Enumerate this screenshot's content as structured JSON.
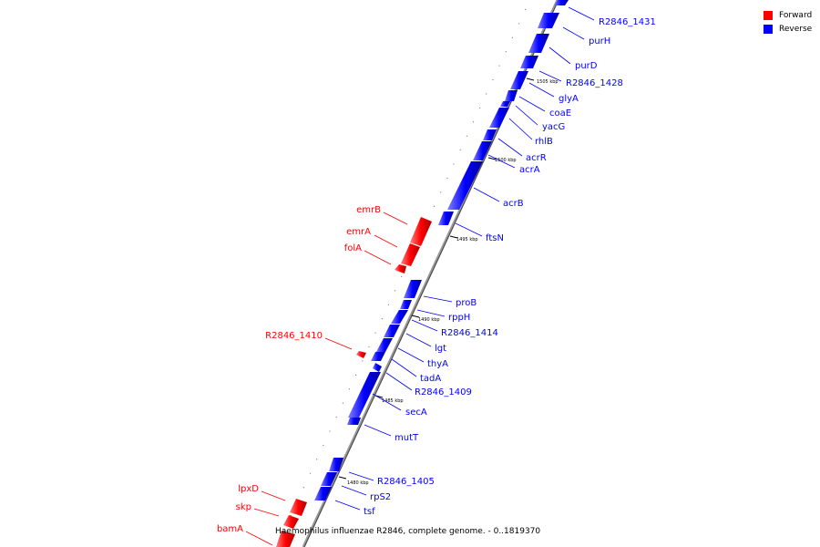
{
  "legend": {
    "forward_label": "Forward",
    "reverse_label": "Reverse",
    "forward_color": "#ff0000",
    "reverse_color": "#0000ff"
  },
  "caption": "Haemophilus influenzae R2846, complete genome. - 0..1819370",
  "ticks": [
    "1505 kbp",
    "1500 kbp",
    "1495 kbp",
    "1490 kbp",
    "1485 kbp",
    "1480 kbp"
  ],
  "forward_genes": [
    "emrB",
    "emrA",
    "folA",
    "R2846_1410",
    "lpxD",
    "skp",
    "bamA"
  ],
  "reverse_genes": [
    "R2846_1431",
    "purH",
    "purD",
    "R2846_1428",
    "glyA",
    "coaE",
    "yacG",
    "rhlB",
    "acrR",
    "acrA",
    "acrB",
    "ftsN",
    "proB",
    "rppH",
    "R2846_1414",
    "lgt",
    "thyA",
    "tadA",
    "R2846_1409",
    "secA",
    "mutT",
    "R2846_1405",
    "rpS2",
    "tsf"
  ]
}
